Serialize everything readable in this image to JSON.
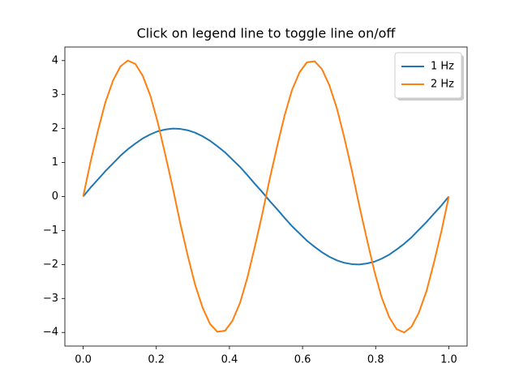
{
  "chart_data": {
    "type": "line",
    "title": "Click on legend line to toggle line on/off",
    "x": [
      0,
      0.02,
      0.041,
      0.061,
      0.082,
      0.102,
      0.122,
      0.143,
      0.163,
      0.184,
      0.204,
      0.224,
      0.245,
      0.265,
      0.286,
      0.306,
      0.327,
      0.347,
      0.367,
      0.388,
      0.408,
      0.429,
      0.449,
      0.469,
      0.49,
      0.51,
      0.531,
      0.551,
      0.571,
      0.592,
      0.612,
      0.633,
      0.653,
      0.673,
      0.694,
      0.714,
      0.735,
      0.755,
      0.776,
      0.796,
      0.816,
      0.837,
      0.857,
      0.878,
      0.898,
      0.918,
      0.939,
      0.959,
      0.98,
      1
    ],
    "series": [
      {
        "name": "1 Hz",
        "color": "#1f77b4",
        "values": [
          0,
          0.26,
          0.51,
          0.75,
          0.98,
          1.2,
          1.39,
          1.56,
          1.71,
          1.83,
          1.92,
          1.97,
          2.0,
          1.99,
          1.95,
          1.88,
          1.77,
          1.64,
          1.48,
          1.3,
          1.09,
          0.87,
          0.63,
          0.38,
          0.13,
          -0.13,
          -0.38,
          -0.63,
          -0.87,
          -1.09,
          -1.3,
          -1.48,
          -1.64,
          -1.77,
          -1.88,
          -1.95,
          -1.99,
          -2.0,
          -1.97,
          -1.92,
          -1.83,
          -1.71,
          -1.56,
          -1.39,
          -1.2,
          -0.98,
          -0.75,
          -0.51,
          -0.26,
          0
        ]
      },
      {
        "name": "2 Hz",
        "color": "#ff7f0e",
        "values": [
          0,
          1.01,
          1.96,
          2.78,
          3.42,
          3.83,
          4.0,
          3.9,
          3.55,
          2.96,
          2.18,
          1.26,
          0.26,
          -0.76,
          -1.74,
          -2.59,
          -3.28,
          -3.75,
          -3.98,
          -3.95,
          -3.66,
          -3.13,
          -2.39,
          -1.5,
          -0.51,
          0.51,
          1.5,
          2.39,
          3.13,
          3.66,
          3.95,
          3.98,
          3.75,
          3.28,
          2.59,
          1.74,
          0.76,
          -0.26,
          -1.26,
          -2.18,
          -2.96,
          -3.55,
          -3.9,
          -4.0,
          -3.83,
          -3.42,
          -2.78,
          -1.96,
          -1.01,
          0
        ]
      }
    ],
    "xlim": [
      -0.05,
      1.05
    ],
    "xticks": [
      {
        "value": 0,
        "label": "0.0"
      },
      {
        "value": 0.2,
        "label": "0.2"
      },
      {
        "value": 0.4,
        "label": "0.4"
      },
      {
        "value": 0.6,
        "label": "0.6"
      },
      {
        "value": 0.8,
        "label": "0.8"
      },
      {
        "value": 1,
        "label": "1.0"
      }
    ],
    "ylim": [
      -4.4,
      4.4
    ],
    "yticks": [
      {
        "value": -4,
        "label": "−4"
      },
      {
        "value": -3,
        "label": "−3"
      },
      {
        "value": -2,
        "label": "−2"
      },
      {
        "value": -1,
        "label": "−1"
      },
      0,
      1,
      2,
      3,
      4
    ],
    "legend": "upper right",
    "grid": false
  }
}
